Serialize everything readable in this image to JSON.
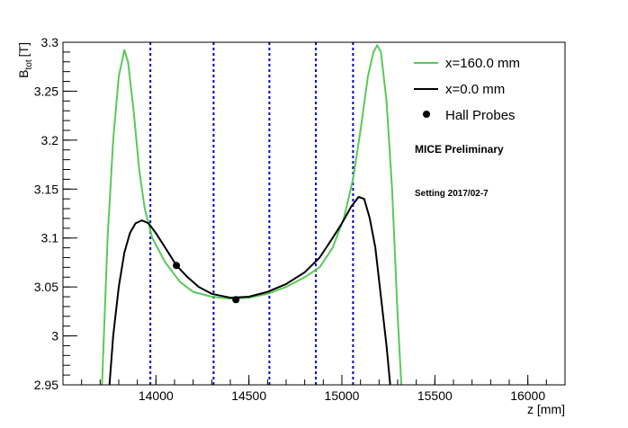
{
  "chart_data": {
    "type": "line",
    "xlabel": "z [mm]",
    "ylabel": "B",
    "ylabel_sub": "tot",
    "ylabel_unit": "[T]",
    "xlim": [
      13500,
      16200
    ],
    "ylim": [
      2.95,
      3.3
    ],
    "grid": false,
    "legend_position": "top-right",
    "x_ticks": [
      14000,
      14500,
      15000,
      15500,
      16000
    ],
    "y_ticks": [
      2.95,
      3,
      3.05,
      3.1,
      3.15,
      3.2,
      3.25,
      3.3
    ],
    "series": [
      {
        "name": "x=160.0 mm",
        "color": "#5ac85a",
        "style": "line",
        "points": [
          [
            13710,
            2.95
          ],
          [
            13740,
            3.1
          ],
          [
            13770,
            3.2
          ],
          [
            13800,
            3.265
          ],
          [
            13830,
            3.292
          ],
          [
            13850,
            3.28
          ],
          [
            13880,
            3.23
          ],
          [
            13910,
            3.17
          ],
          [
            13940,
            3.13
          ],
          [
            13980,
            3.1
          ],
          [
            14050,
            3.075
          ],
          [
            14130,
            3.055
          ],
          [
            14200,
            3.045
          ],
          [
            14300,
            3.04
          ],
          [
            14400,
            3.038
          ],
          [
            14500,
            3.039
          ],
          [
            14600,
            3.043
          ],
          [
            14700,
            3.05
          ],
          [
            14800,
            3.06
          ],
          [
            14880,
            3.07
          ],
          [
            14950,
            3.09
          ],
          [
            15010,
            3.12
          ],
          [
            15060,
            3.16
          ],
          [
            15100,
            3.21
          ],
          [
            15140,
            3.265
          ],
          [
            15170,
            3.29
          ],
          [
            15190,
            3.297
          ],
          [
            15210,
            3.29
          ],
          [
            15240,
            3.24
          ],
          [
            15270,
            3.15
          ],
          [
            15300,
            3.02
          ],
          [
            15320,
            2.95
          ]
        ]
      },
      {
        "name": "x=0.0 mm",
        "color": "#000000",
        "style": "line",
        "points": [
          [
            13750,
            2.95
          ],
          [
            13770,
            3.0
          ],
          [
            13800,
            3.05
          ],
          [
            13830,
            3.085
          ],
          [
            13860,
            3.105
          ],
          [
            13890,
            3.115
          ],
          [
            13925,
            3.118
          ],
          [
            13960,
            3.115
          ],
          [
            14000,
            3.105
          ],
          [
            14050,
            3.09
          ],
          [
            14110,
            3.072
          ],
          [
            14170,
            3.06
          ],
          [
            14230,
            3.05
          ],
          [
            14300,
            3.043
          ],
          [
            14400,
            3.039
          ],
          [
            14500,
            3.04
          ],
          [
            14600,
            3.045
          ],
          [
            14700,
            3.053
          ],
          [
            14800,
            3.065
          ],
          [
            14880,
            3.08
          ],
          [
            14950,
            3.1
          ],
          [
            15000,
            3.115
          ],
          [
            15050,
            3.132
          ],
          [
            15090,
            3.142
          ],
          [
            15120,
            3.14
          ],
          [
            15150,
            3.12
          ],
          [
            15180,
            3.09
          ],
          [
            15210,
            3.04
          ],
          [
            15240,
            2.99
          ],
          [
            15260,
            2.95
          ]
        ]
      },
      {
        "name": "Hall Probes",
        "color": "#000000",
        "style": "markers",
        "points": [
          [
            14110,
            3.072
          ],
          [
            14430,
            3.037
          ]
        ]
      }
    ],
    "vertical_lines": {
      "color": "#0000c8",
      "x": [
        13970,
        14310,
        14610,
        14860,
        15060
      ]
    },
    "annotations": [
      "MICE Preliminary",
      "Setting 2017/02-7"
    ]
  }
}
